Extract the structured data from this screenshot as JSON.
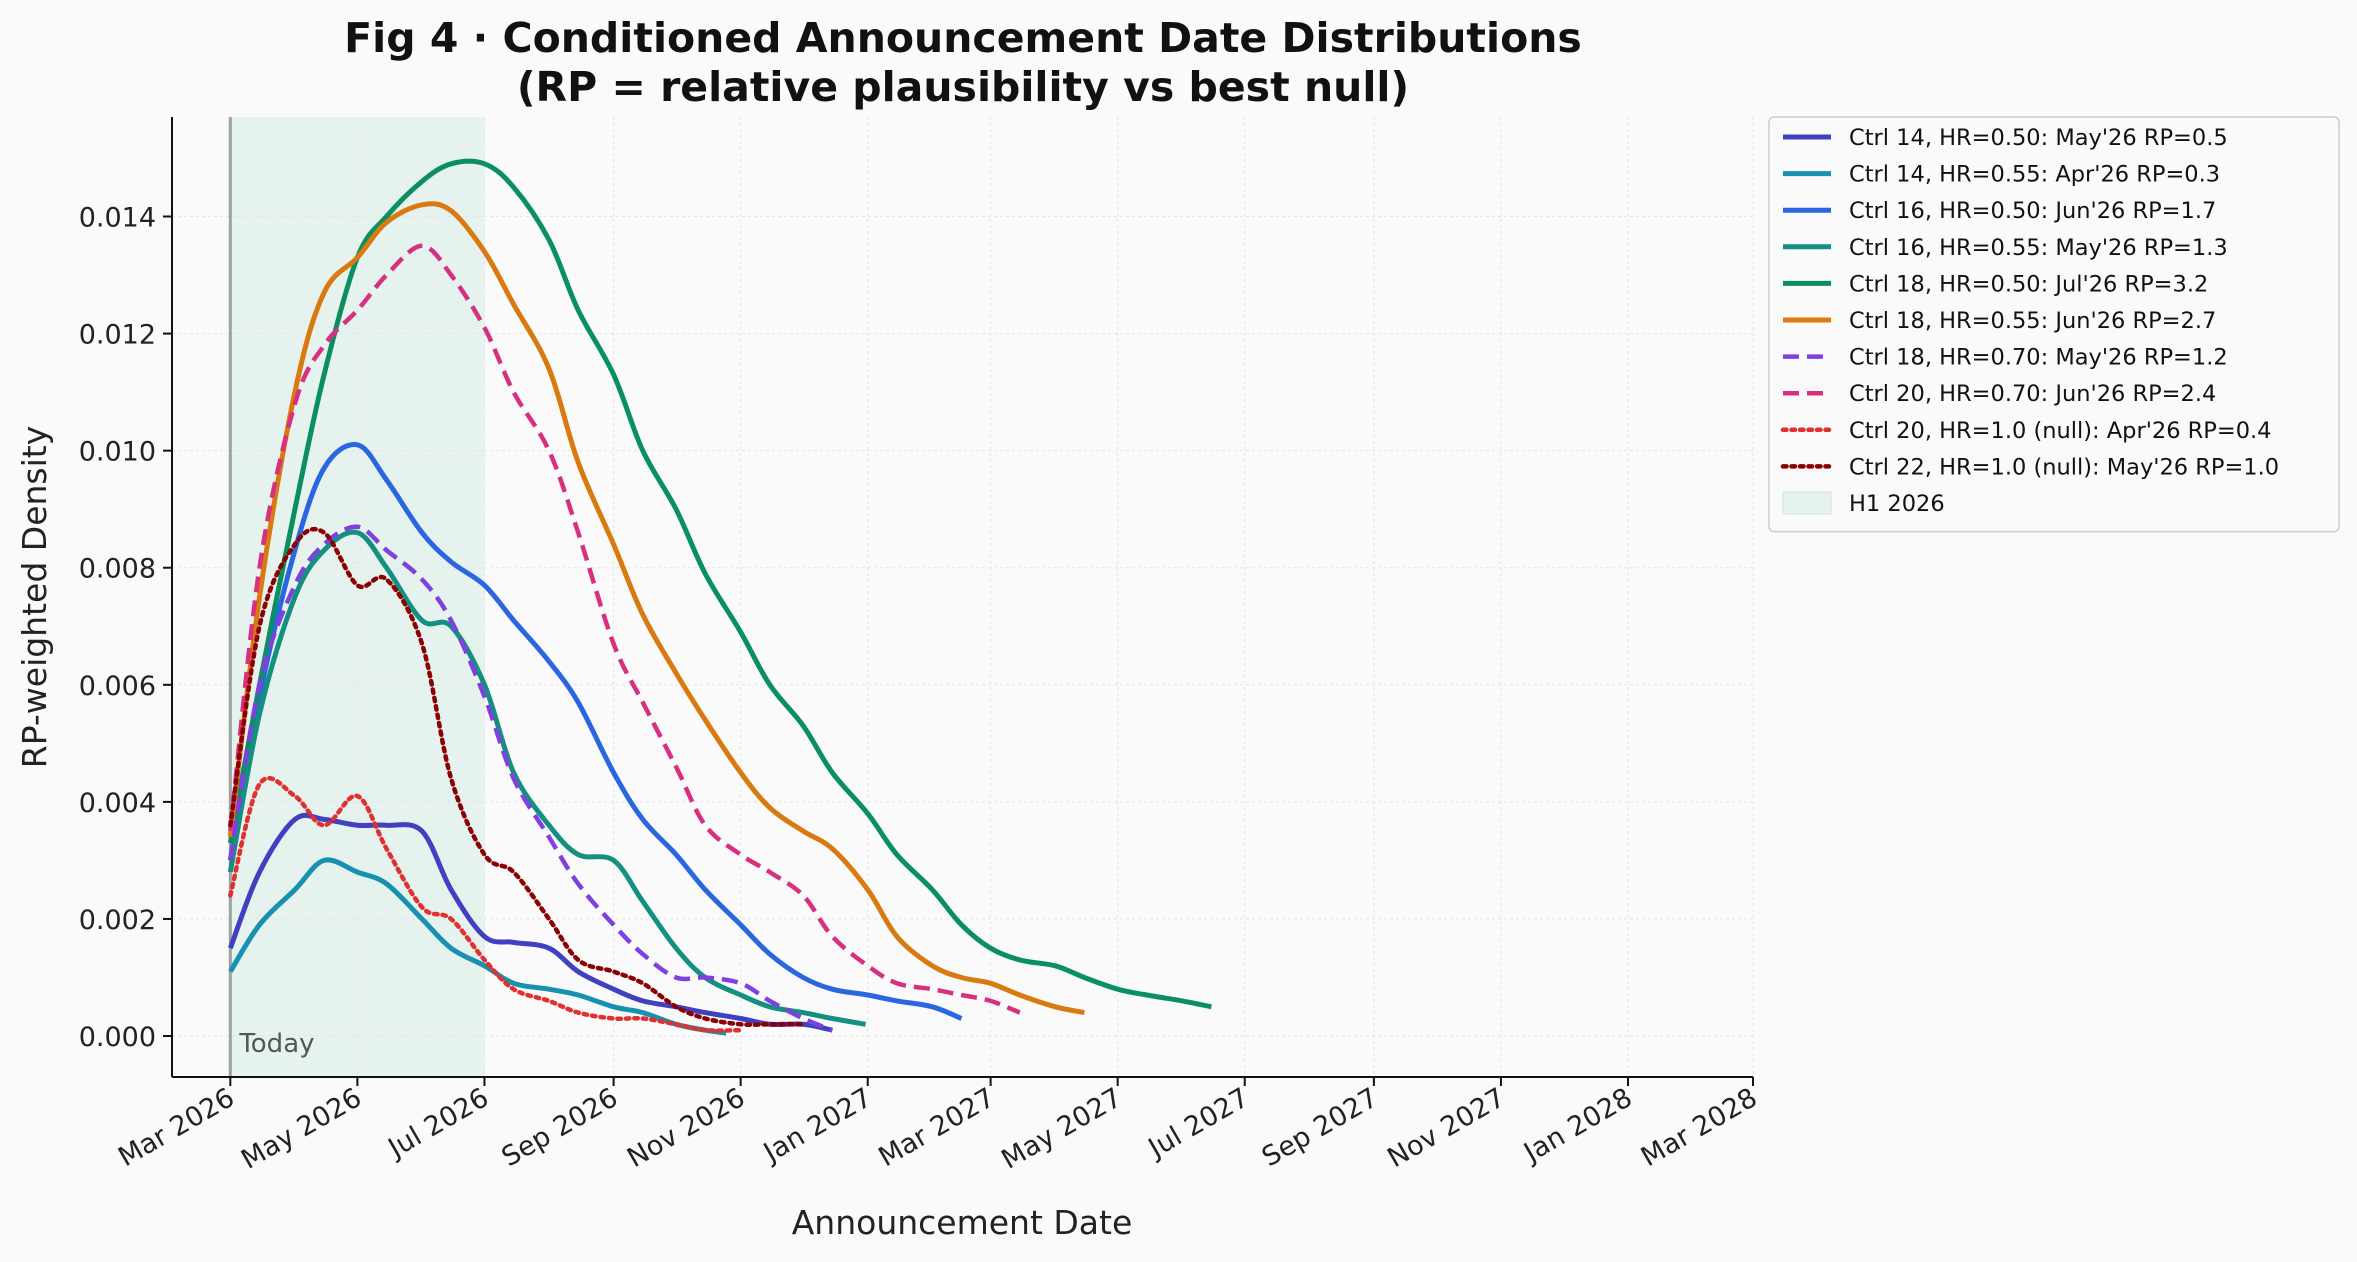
{
  "chart_data": {
    "type": "line",
    "title": "Fig 4 · Conditioned Announcement Date Distributions",
    "subtitle": "(RP = relative plausibility vs best null)",
    "xlabel": "Announcement Date",
    "ylabel": "RP-weighted Density",
    "xlim": [
      "2026-02-01",
      "2028-03-01"
    ],
    "ylim": [
      -0.0007,
      0.0157
    ],
    "x_ticks": [
      "2026-03-01",
      "2026-05-01",
      "2026-07-01",
      "2026-09-01",
      "2026-11-01",
      "2027-01-01",
      "2027-03-01",
      "2027-05-01",
      "2027-07-01",
      "2027-09-01",
      "2027-11-01",
      "2028-01-01",
      "2028-03-01"
    ],
    "x_tick_labels": [
      "Mar 2026",
      "May 2026",
      "Jul 2026",
      "Sep 2026",
      "Nov 2026",
      "Jan 2027",
      "Mar 2027",
      "May 2027",
      "Jul 2027",
      "Sep 2027",
      "Nov 2027",
      "Jan 2028",
      "Mar 2028"
    ],
    "y_ticks": [
      0.0,
      0.002,
      0.004,
      0.006,
      0.008,
      0.01,
      0.012,
      0.014
    ],
    "y_tick_labels": [
      "0.000",
      "0.002",
      "0.004",
      "0.006",
      "0.008",
      "0.010",
      "0.012",
      "0.014"
    ],
    "grid": true,
    "legend_position": "outside-right",
    "today": {
      "date": "2026-03-01",
      "label": "Today"
    },
    "shaded_region": {
      "name": "H1 2026",
      "start": "2026-03-01",
      "end": "2026-07-01",
      "color": "#e6f2ee"
    },
    "series": [
      {
        "name": "Ctrl 14, HR=0.50: May'26 RP=0.5",
        "color": "#4040c0",
        "style": "solid",
        "points": [
          [
            "2026-03-01",
            0.0015
          ],
          [
            "2026-03-15",
            0.0028
          ],
          [
            "2026-04-01",
            0.0037
          ],
          [
            "2026-04-15",
            0.0037
          ],
          [
            "2026-05-01",
            0.0036
          ],
          [
            "2026-05-15",
            0.0036
          ],
          [
            "2026-06-01",
            0.0035
          ],
          [
            "2026-06-15",
            0.0025
          ],
          [
            "2026-07-01",
            0.0017
          ],
          [
            "2026-07-15",
            0.0016
          ],
          [
            "2026-08-01",
            0.0015
          ],
          [
            "2026-08-15",
            0.0011
          ],
          [
            "2026-09-01",
            0.0008
          ],
          [
            "2026-09-15",
            0.0006
          ],
          [
            "2026-10-01",
            0.0005
          ],
          [
            "2026-10-15",
            0.0004
          ],
          [
            "2026-11-01",
            0.0003
          ],
          [
            "2026-11-15",
            0.0002
          ],
          [
            "2026-12-01",
            0.0002
          ],
          [
            "2026-12-15",
            0.0001
          ]
        ]
      },
      {
        "name": "Ctrl 14, HR=0.55: Apr'26 RP=0.3",
        "color": "#1890b0",
        "style": "solid",
        "points": [
          [
            "2026-03-01",
            0.0011
          ],
          [
            "2026-03-15",
            0.0019
          ],
          [
            "2026-04-01",
            0.0025
          ],
          [
            "2026-04-15",
            0.003
          ],
          [
            "2026-05-01",
            0.0028
          ],
          [
            "2026-05-15",
            0.0026
          ],
          [
            "2026-06-01",
            0.002
          ],
          [
            "2026-06-15",
            0.0015
          ],
          [
            "2026-07-01",
            0.0012
          ],
          [
            "2026-07-15",
            0.0009
          ],
          [
            "2026-08-01",
            0.0008
          ],
          [
            "2026-08-15",
            0.0007
          ],
          [
            "2026-09-01",
            0.0005
          ],
          [
            "2026-09-15",
            0.0004
          ],
          [
            "2026-10-01",
            0.0002
          ],
          [
            "2026-10-15",
            0.0001
          ],
          [
            "2026-10-25",
            5e-05
          ]
        ]
      },
      {
        "name": "Ctrl 16, HR=0.50: Jun'26 RP=1.7",
        "color": "#2a66e0",
        "style": "solid",
        "points": [
          [
            "2026-03-01",
            0.003
          ],
          [
            "2026-03-15",
            0.0058
          ],
          [
            "2026-04-01",
            0.0083
          ],
          [
            "2026-04-15",
            0.0097
          ],
          [
            "2026-05-01",
            0.0101
          ],
          [
            "2026-05-15",
            0.0095
          ],
          [
            "2026-06-01",
            0.0086
          ],
          [
            "2026-06-15",
            0.0081
          ],
          [
            "2026-07-01",
            0.0077
          ],
          [
            "2026-07-15",
            0.0071
          ],
          [
            "2026-08-01",
            0.0064
          ],
          [
            "2026-08-15",
            0.0057
          ],
          [
            "2026-09-01",
            0.0045
          ],
          [
            "2026-09-15",
            0.0037
          ],
          [
            "2026-10-01",
            0.0031
          ],
          [
            "2026-10-15",
            0.0025
          ],
          [
            "2026-11-01",
            0.0019
          ],
          [
            "2026-11-15",
            0.0014
          ],
          [
            "2026-12-01",
            0.001
          ],
          [
            "2026-12-15",
            0.0008
          ],
          [
            "2027-01-01",
            0.0007
          ],
          [
            "2027-01-15",
            0.0006
          ],
          [
            "2027-02-01",
            0.0005
          ],
          [
            "2027-02-15",
            0.0003
          ]
        ]
      },
      {
        "name": "Ctrl 16, HR=0.55: May'26 RP=1.3",
        "color": "#139080",
        "style": "solid",
        "points": [
          [
            "2026-03-01",
            0.0028
          ],
          [
            "2026-03-15",
            0.0055
          ],
          [
            "2026-04-01",
            0.0075
          ],
          [
            "2026-04-15",
            0.0083
          ],
          [
            "2026-05-01",
            0.0086
          ],
          [
            "2026-05-15",
            0.008
          ],
          [
            "2026-06-01",
            0.0071
          ],
          [
            "2026-06-15",
            0.007
          ],
          [
            "2026-07-01",
            0.006
          ],
          [
            "2026-07-15",
            0.0045
          ],
          [
            "2026-08-01",
            0.0036
          ],
          [
            "2026-08-15",
            0.0031
          ],
          [
            "2026-09-01",
            0.003
          ],
          [
            "2026-09-15",
            0.0023
          ],
          [
            "2026-10-01",
            0.0015
          ],
          [
            "2026-10-15",
            0.001
          ],
          [
            "2026-11-01",
            0.0007
          ],
          [
            "2026-11-15",
            0.0005
          ],
          [
            "2026-12-01",
            0.0004
          ],
          [
            "2026-12-15",
            0.0003
          ],
          [
            "2026-12-31",
            0.0002
          ]
        ]
      },
      {
        "name": "Ctrl 18, HR=0.50: Jul'26 RP=3.2",
        "color": "#0a9060",
        "style": "solid",
        "points": [
          [
            "2026-03-01",
            0.0033
          ],
          [
            "2026-03-15",
            0.006
          ],
          [
            "2026-04-01",
            0.009
          ],
          [
            "2026-04-15",
            0.0113
          ],
          [
            "2026-05-01",
            0.0133
          ],
          [
            "2026-05-15",
            0.014
          ],
          [
            "2026-06-01",
            0.0146
          ],
          [
            "2026-06-15",
            0.0149
          ],
          [
            "2026-07-01",
            0.0149
          ],
          [
            "2026-07-15",
            0.0145
          ],
          [
            "2026-08-01",
            0.0136
          ],
          [
            "2026-08-15",
            0.0124
          ],
          [
            "2026-09-01",
            0.0113
          ],
          [
            "2026-09-15",
            0.01
          ],
          [
            "2026-10-01",
            0.009
          ],
          [
            "2026-10-15",
            0.0079
          ],
          [
            "2026-11-01",
            0.0069
          ],
          [
            "2026-11-15",
            0.006
          ],
          [
            "2026-12-01",
            0.0053
          ],
          [
            "2026-12-15",
            0.0045
          ],
          [
            "2027-01-01",
            0.0038
          ],
          [
            "2027-01-15",
            0.0031
          ],
          [
            "2027-02-01",
            0.0025
          ],
          [
            "2027-02-15",
            0.0019
          ],
          [
            "2027-03-01",
            0.0015
          ],
          [
            "2027-03-15",
            0.0013
          ],
          [
            "2027-04-01",
            0.0012
          ],
          [
            "2027-04-15",
            0.001
          ],
          [
            "2027-05-01",
            0.0008
          ],
          [
            "2027-05-15",
            0.0007
          ],
          [
            "2027-06-01",
            0.0006
          ],
          [
            "2027-06-15",
            0.0005
          ]
        ]
      },
      {
        "name": "Ctrl 18, HR=0.55: Jun'26 RP=2.7",
        "color": "#d97a10",
        "style": "solid",
        "points": [
          [
            "2026-03-01",
            0.0034
          ],
          [
            "2026-03-15",
            0.0075
          ],
          [
            "2026-04-01",
            0.011
          ],
          [
            "2026-04-15",
            0.0127
          ],
          [
            "2026-05-01",
            0.0133
          ],
          [
            "2026-05-15",
            0.0139
          ],
          [
            "2026-06-01",
            0.0142
          ],
          [
            "2026-06-15",
            0.0141
          ],
          [
            "2026-07-01",
            0.0134
          ],
          [
            "2026-07-15",
            0.0125
          ],
          [
            "2026-08-01",
            0.0114
          ],
          [
            "2026-08-15",
            0.0098
          ],
          [
            "2026-09-01",
            0.0084
          ],
          [
            "2026-09-15",
            0.0072
          ],
          [
            "2026-10-01",
            0.0062
          ],
          [
            "2026-10-15",
            0.0054
          ],
          [
            "2026-11-01",
            0.0045
          ],
          [
            "2026-11-15",
            0.0039
          ],
          [
            "2026-12-01",
            0.0035
          ],
          [
            "2026-12-15",
            0.0032
          ],
          [
            "2027-01-01",
            0.0025
          ],
          [
            "2027-01-15",
            0.0017
          ],
          [
            "2027-02-01",
            0.0012
          ],
          [
            "2027-02-15",
            0.001
          ],
          [
            "2027-03-01",
            0.0009
          ],
          [
            "2027-03-15",
            0.0007
          ],
          [
            "2027-04-01",
            0.0005
          ],
          [
            "2027-04-15",
            0.0004
          ]
        ]
      },
      {
        "name": "Ctrl 18, HR=0.70: May'26 RP=1.2",
        "color": "#8040e0",
        "style": "dashed",
        "points": [
          [
            "2026-03-01",
            0.003
          ],
          [
            "2026-03-15",
            0.006
          ],
          [
            "2026-04-01",
            0.0077
          ],
          [
            "2026-04-15",
            0.0084
          ],
          [
            "2026-05-01",
            0.0087
          ],
          [
            "2026-05-15",
            0.0083
          ],
          [
            "2026-06-01",
            0.0078
          ],
          [
            "2026-06-15",
            0.0071
          ],
          [
            "2026-07-01",
            0.0058
          ],
          [
            "2026-07-15",
            0.0044
          ],
          [
            "2026-08-01",
            0.0034
          ],
          [
            "2026-08-15",
            0.0026
          ],
          [
            "2026-09-01",
            0.0019
          ],
          [
            "2026-09-15",
            0.0014
          ],
          [
            "2026-10-01",
            0.001
          ],
          [
            "2026-10-15",
            0.001
          ],
          [
            "2026-11-01",
            0.0009
          ],
          [
            "2026-11-15",
            0.0006
          ],
          [
            "2026-12-01",
            0.0003
          ],
          [
            "2026-12-15",
            0.0001
          ]
        ]
      },
      {
        "name": "Ctrl 20, HR=0.70: Jun'26 RP=2.4",
        "color": "#d83080",
        "style": "dashed",
        "points": [
          [
            "2026-03-01",
            0.0035
          ],
          [
            "2026-03-15",
            0.008
          ],
          [
            "2026-04-01",
            0.0108
          ],
          [
            "2026-04-15",
            0.0118
          ],
          [
            "2026-05-01",
            0.0124
          ],
          [
            "2026-05-15",
            0.013
          ],
          [
            "2026-06-01",
            0.0135
          ],
          [
            "2026-06-15",
            0.013
          ],
          [
            "2026-07-01",
            0.0121
          ],
          [
            "2026-07-15",
            0.011
          ],
          [
            "2026-08-01",
            0.01
          ],
          [
            "2026-08-15",
            0.0086
          ],
          [
            "2026-09-01",
            0.0067
          ],
          [
            "2026-09-15",
            0.0057
          ],
          [
            "2026-10-01",
            0.0046
          ],
          [
            "2026-10-15",
            0.0036
          ],
          [
            "2026-11-01",
            0.0031
          ],
          [
            "2026-11-15",
            0.0028
          ],
          [
            "2026-12-01",
            0.0024
          ],
          [
            "2026-12-15",
            0.0017
          ],
          [
            "2027-01-01",
            0.0012
          ],
          [
            "2027-01-15",
            0.0009
          ],
          [
            "2027-02-01",
            0.0008
          ],
          [
            "2027-02-15",
            0.0007
          ],
          [
            "2027-03-01",
            0.0006
          ],
          [
            "2027-03-15",
            0.0004
          ]
        ]
      },
      {
        "name": "Ctrl 20, HR=1.0 (null): Apr'26 RP=0.4",
        "color": "#e03030",
        "style": "dotted",
        "points": [
          [
            "2026-03-01",
            0.0024
          ],
          [
            "2026-03-15",
            0.0043
          ],
          [
            "2026-04-01",
            0.0041
          ],
          [
            "2026-04-15",
            0.0036
          ],
          [
            "2026-05-01",
            0.0041
          ],
          [
            "2026-05-15",
            0.0032
          ],
          [
            "2026-06-01",
            0.0022
          ],
          [
            "2026-06-15",
            0.002
          ],
          [
            "2026-07-01",
            0.0013
          ],
          [
            "2026-07-15",
            0.0008
          ],
          [
            "2026-08-01",
            0.0006
          ],
          [
            "2026-08-15",
            0.0004
          ],
          [
            "2026-09-01",
            0.0003
          ],
          [
            "2026-09-15",
            0.0003
          ],
          [
            "2026-10-01",
            0.0002
          ],
          [
            "2026-10-15",
            0.0001
          ],
          [
            "2026-11-01",
            0.0001
          ]
        ]
      },
      {
        "name": "Ctrl 22, HR=1.0 (null): May'26 RP=1.0",
        "color": "#8b0000",
        "style": "dotted",
        "points": [
          [
            "2026-03-01",
            0.0036
          ],
          [
            "2026-03-15",
            0.007
          ],
          [
            "2026-04-01",
            0.0084
          ],
          [
            "2026-04-15",
            0.0086
          ],
          [
            "2026-05-01",
            0.0077
          ],
          [
            "2026-05-15",
            0.0078
          ],
          [
            "2026-06-01",
            0.0067
          ],
          [
            "2026-06-15",
            0.0044
          ],
          [
            "2026-07-01",
            0.0031
          ],
          [
            "2026-07-15",
            0.0028
          ],
          [
            "2026-08-01",
            0.002
          ],
          [
            "2026-08-15",
            0.0013
          ],
          [
            "2026-09-01",
            0.0011
          ],
          [
            "2026-09-15",
            0.0009
          ],
          [
            "2026-10-01",
            0.0005
          ],
          [
            "2026-10-15",
            0.0003
          ],
          [
            "2026-11-01",
            0.0002
          ],
          [
            "2026-11-15",
            0.0002
          ],
          [
            "2026-12-01",
            0.0002
          ]
        ]
      }
    ]
  }
}
